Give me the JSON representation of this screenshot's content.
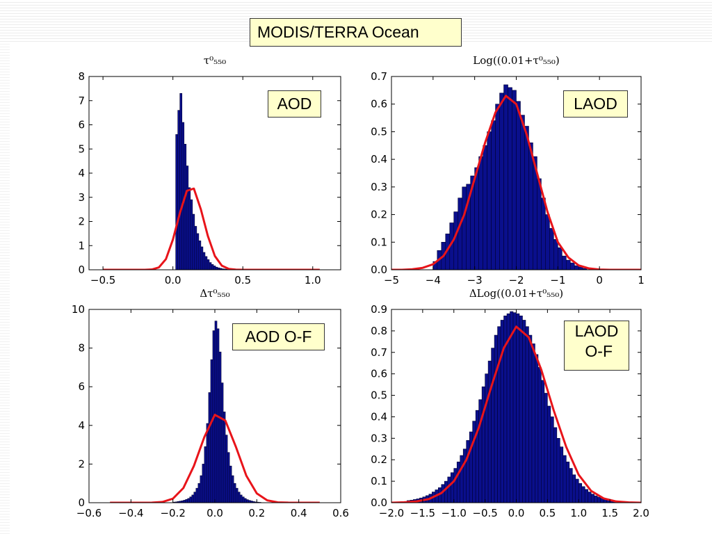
{
  "page_title": "MODIS/TERRA Ocean",
  "chart_data": [
    {
      "type": "bar",
      "title": "τ⁰₅₅₀",
      "label": "AOD",
      "xlim": [
        -0.6,
        1.2
      ],
      "ylim": [
        0,
        8
      ],
      "xticks": [
        -0.5,
        0.0,
        0.5,
        1.0
      ],
      "xtick_labels": [
        "−0.5",
        "0.0",
        "0.5",
        "1.0"
      ],
      "yticks": [
        0,
        1,
        2,
        3,
        4,
        5,
        6,
        7,
        8
      ],
      "ytick_labels": [
        "0",
        "1",
        "2",
        "3",
        "4",
        "5",
        "6",
        "7",
        "8"
      ],
      "histogram": {
        "name": "histogram",
        "bin_edges": [
          0.02,
          0.035,
          0.05,
          0.065,
          0.08,
          0.095,
          0.11,
          0.125,
          0.14,
          0.155,
          0.17,
          0.185,
          0.2,
          0.215,
          0.23,
          0.245,
          0.26,
          0.275,
          0.29,
          0.305,
          0.32,
          0.335,
          0.35,
          0.365,
          0.38,
          0.395,
          0.41,
          0.425,
          0.44,
          0.455,
          0.47
        ],
        "values": [
          5.6,
          6.6,
          7.3,
          6.1,
          5.2,
          4.3,
          3.4,
          2.9,
          2.3,
          1.8,
          1.5,
          1.2,
          0.95,
          0.72,
          0.55,
          0.42,
          0.3,
          0.22,
          0.16,
          0.11,
          0.08,
          0.06,
          0.04,
          0.03,
          0.02,
          0.015,
          0.01,
          0.008,
          0.005,
          0.003
        ]
      },
      "fit": {
        "name": "gaussian fit",
        "x": [
          -0.5,
          -0.45,
          -0.4,
          -0.35,
          -0.3,
          -0.25,
          -0.2,
          -0.15,
          -0.1,
          -0.05,
          0.0,
          0.05,
          0.1,
          0.15,
          0.2,
          0.25,
          0.3,
          0.35,
          0.4,
          0.45,
          0.5,
          0.55,
          0.6,
          0.65,
          0.7,
          0.75,
          0.8,
          0.85,
          0.9,
          0.95,
          1.0,
          1.05
        ],
        "y": [
          0,
          0,
          0,
          0,
          0,
          0,
          0.001,
          0.014,
          0.1,
          0.44,
          1.25,
          2.35,
          3.27,
          3.36,
          2.5,
          1.4,
          0.57,
          0.17,
          0.037,
          0.006,
          0.001,
          0,
          0,
          0,
          0,
          0,
          0,
          0,
          0,
          0,
          0,
          0
        ]
      }
    },
    {
      "type": "bar",
      "title": "Log((0.01+τ⁰₅₅₀)",
      "label": "LAOD",
      "xlim": [
        -5,
        1
      ],
      "ylim": [
        0,
        0.7
      ],
      "xticks": [
        -5,
        -4,
        -3,
        -2,
        -1,
        0,
        1
      ],
      "xtick_labels": [
        "−5",
        "−4",
        "−3",
        "−2",
        "−1",
        "0",
        "1"
      ],
      "yticks": [
        0,
        0.1,
        0.2,
        0.3,
        0.4,
        0.5,
        0.6,
        0.7
      ],
      "ytick_labels": [
        "0.0",
        "0.1",
        "0.2",
        "0.3",
        "0.4",
        "0.5",
        "0.6",
        "0.7"
      ],
      "histogram": {
        "name": "histogram",
        "bin_edges": [
          -4.0,
          -3.9,
          -3.8,
          -3.7,
          -3.6,
          -3.5,
          -3.4,
          -3.3,
          -3.2,
          -3.1,
          -3.0,
          -2.9,
          -2.8,
          -2.7,
          -2.6,
          -2.5,
          -2.4,
          -2.3,
          -2.2,
          -2.1,
          -2.0,
          -1.9,
          -1.8,
          -1.7,
          -1.6,
          -1.5,
          -1.4,
          -1.3,
          -1.2,
          -1.1,
          -1.0,
          -0.9,
          -0.8,
          -0.7,
          -0.6,
          -0.5,
          -0.4,
          -0.3
        ],
        "values": [
          0.03,
          0.07,
          0.1,
          0.13,
          0.17,
          0.21,
          0.26,
          0.3,
          0.31,
          0.34,
          0.37,
          0.41,
          0.45,
          0.5,
          0.54,
          0.6,
          0.64,
          0.67,
          0.66,
          0.65,
          0.61,
          0.56,
          0.52,
          0.46,
          0.41,
          0.33,
          0.26,
          0.2,
          0.15,
          0.11,
          0.08,
          0.05,
          0.035,
          0.025,
          0.015,
          0.01,
          0.005
        ]
      },
      "fit": {
        "name": "gaussian fit",
        "x": [
          -5.0,
          -4.75,
          -4.5,
          -4.25,
          -4.0,
          -3.75,
          -3.5,
          -3.25,
          -3.0,
          -2.75,
          -2.5,
          -2.25,
          -2.0,
          -1.75,
          -1.5,
          -1.25,
          -1.0,
          -0.75,
          -0.5,
          -0.25,
          0.0,
          0.25,
          0.5,
          0.75,
          1.0
        ],
        "y": [
          0,
          0,
          0.002,
          0.007,
          0.02,
          0.05,
          0.11,
          0.2,
          0.33,
          0.46,
          0.57,
          0.63,
          0.6,
          0.49,
          0.35,
          0.21,
          0.1,
          0.045,
          0.016,
          0.005,
          0.001,
          0,
          0,
          0,
          0
        ]
      }
    },
    {
      "type": "bar",
      "title": "Δτ⁰₅₅₀",
      "label": "AOD O-F",
      "xlim": [
        -0.6,
        0.6
      ],
      "ylim": [
        0,
        10
      ],
      "xticks": [
        -0.6,
        -0.4,
        -0.2,
        0.0,
        0.2,
        0.4,
        0.6
      ],
      "xtick_labels": [
        "−0.6",
        "−0.4",
        "−0.2",
        "0.0",
        "0.2",
        "0.4",
        "0.6"
      ],
      "yticks": [
        0,
        2,
        4,
        6,
        8,
        10
      ],
      "ytick_labels": [
        "0",
        "2",
        "4",
        "6",
        "8",
        "10"
      ],
      "histogram": {
        "name": "histogram",
        "bin_edges": [
          -0.2,
          -0.19,
          -0.18,
          -0.17,
          -0.16,
          -0.15,
          -0.14,
          -0.13,
          -0.12,
          -0.11,
          -0.1,
          -0.09,
          -0.08,
          -0.07,
          -0.06,
          -0.05,
          -0.04,
          -0.03,
          -0.02,
          -0.01,
          0.0,
          0.01,
          0.02,
          0.03,
          0.04,
          0.05,
          0.06,
          0.07,
          0.08,
          0.09,
          0.1,
          0.11,
          0.12,
          0.13,
          0.14,
          0.15,
          0.16,
          0.17,
          0.18,
          0.19,
          0.2,
          0.21,
          0.22
        ],
        "values": [
          0.03,
          0.04,
          0.06,
          0.08,
          0.1,
          0.13,
          0.17,
          0.22,
          0.3,
          0.4,
          0.55,
          0.75,
          1.0,
          1.4,
          2.0,
          2.9,
          4.1,
          5.7,
          7.4,
          8.9,
          9.4,
          9.0,
          7.8,
          6.2,
          4.7,
          3.5,
          2.6,
          1.9,
          1.4,
          1.0,
          0.75,
          0.55,
          0.4,
          0.3,
          0.22,
          0.16,
          0.12,
          0.09,
          0.06,
          0.04,
          0.03,
          0.02
        ]
      },
      "fit": {
        "name": "gaussian fit",
        "x": [
          -0.5,
          -0.45,
          -0.4,
          -0.35,
          -0.3,
          -0.25,
          -0.2,
          -0.15,
          -0.1,
          -0.05,
          0.0,
          0.05,
          0.1,
          0.15,
          0.2,
          0.25,
          0.3,
          0.35,
          0.4,
          0.45,
          0.5
        ],
        "y": [
          0,
          0,
          0,
          0,
          0.005,
          0.04,
          0.21,
          0.76,
          1.9,
          3.4,
          4.55,
          4.25,
          2.9,
          1.4,
          0.48,
          0.12,
          0.02,
          0.003,
          0,
          0,
          0
        ]
      }
    },
    {
      "type": "bar",
      "title": "ΔLog((0.01+τ⁰₅₅₀)",
      "label": "LAOD\n O-F",
      "xlim": [
        -2.0,
        2.0
      ],
      "ylim": [
        0,
        0.9
      ],
      "xticks": [
        -2.0,
        -1.5,
        -1.0,
        -0.5,
        0.0,
        0.5,
        1.0,
        1.5,
        2.0
      ],
      "xtick_labels": [
        "−2.0",
        "−1.5",
        "−1.0",
        "−0.5",
        "0.0",
        "0.5",
        "1.0",
        "1.5",
        "2.0"
      ],
      "yticks": [
        0,
        0.1,
        0.2,
        0.3,
        0.4,
        0.5,
        0.6,
        0.7,
        0.8,
        0.9
      ],
      "ytick_labels": [
        "0.0",
        "0.1",
        "0.2",
        "0.3",
        "0.4",
        "0.5",
        "0.6",
        "0.7",
        "0.8",
        "0.9"
      ],
      "histogram": {
        "name": "histogram",
        "bin_edges": [
          -1.75,
          -1.7,
          -1.65,
          -1.6,
          -1.55,
          -1.5,
          -1.45,
          -1.4,
          -1.35,
          -1.3,
          -1.25,
          -1.2,
          -1.15,
          -1.1,
          -1.05,
          -1.0,
          -0.95,
          -0.9,
          -0.85,
          -0.8,
          -0.75,
          -0.7,
          -0.65,
          -0.6,
          -0.55,
          -0.5,
          -0.45,
          -0.4,
          -0.35,
          -0.3,
          -0.25,
          -0.2,
          -0.15,
          -0.1,
          -0.05,
          0.0,
          0.05,
          0.1,
          0.15,
          0.2,
          0.25,
          0.3,
          0.35,
          0.4,
          0.45,
          0.5,
          0.55,
          0.6,
          0.65,
          0.7,
          0.75,
          0.8,
          0.85,
          0.9,
          0.95,
          1.0,
          1.05,
          1.1,
          1.15,
          1.2,
          1.25,
          1.3,
          1.35,
          1.4,
          1.45,
          1.5,
          1.55,
          1.6,
          1.65,
          1.7,
          1.75
        ],
        "values": [
          0.01,
          0.012,
          0.015,
          0.018,
          0.022,
          0.027,
          0.033,
          0.04,
          0.05,
          0.06,
          0.07,
          0.085,
          0.1,
          0.12,
          0.14,
          0.16,
          0.19,
          0.22,
          0.25,
          0.29,
          0.33,
          0.38,
          0.43,
          0.48,
          0.54,
          0.6,
          0.66,
          0.72,
          0.78,
          0.82,
          0.85,
          0.87,
          0.88,
          0.89,
          0.885,
          0.88,
          0.87,
          0.85,
          0.82,
          0.78,
          0.74,
          0.69,
          0.63,
          0.57,
          0.51,
          0.45,
          0.4,
          0.35,
          0.3,
          0.26,
          0.22,
          0.19,
          0.16,
          0.13,
          0.11,
          0.09,
          0.075,
          0.062,
          0.05,
          0.04,
          0.032,
          0.026,
          0.02,
          0.016,
          0.012,
          0.009,
          0.007,
          0.005,
          0.004,
          0.003
        ]
      },
      "fit": {
        "name": "gaussian fit",
        "x": [
          -2.0,
          -1.8,
          -1.6,
          -1.4,
          -1.2,
          -1.0,
          -0.8,
          -0.6,
          -0.4,
          -0.2,
          0.0,
          0.2,
          0.4,
          0.6,
          0.8,
          1.0,
          1.2,
          1.4,
          1.6,
          1.8,
          2.0
        ],
        "y": [
          0.0,
          0.002,
          0.006,
          0.017,
          0.045,
          0.1,
          0.2,
          0.35,
          0.54,
          0.72,
          0.82,
          0.77,
          0.62,
          0.43,
          0.26,
          0.13,
          0.055,
          0.02,
          0.006,
          0.0015,
          0.0
        ]
      }
    }
  ]
}
